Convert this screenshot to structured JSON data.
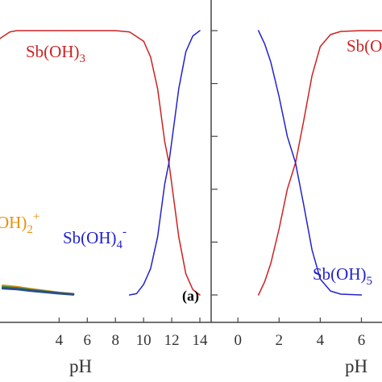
{
  "chart_data": [
    {
      "type": "line",
      "panel_label": "(a)",
      "xlabel": "pH",
      "ylabel": "",
      "xlim": [
        -0.2,
        14.8
      ],
      "ylim": [
        0,
        1
      ],
      "xticks": [
        "4",
        "6",
        "8",
        "10",
        "12",
        "14"
      ],
      "xtick_values": [
        4,
        6,
        8,
        10,
        12,
        14
      ],
      "series": [
        {
          "label_main": "Sb(OH)",
          "label_sub": "3",
          "label_sup": "",
          "color": "#cc2222",
          "x": [
            -0.2,
            0.5,
            1.0,
            2,
            4,
            6,
            8,
            9,
            10,
            10.5,
            11,
            11.5,
            11.8,
            12,
            12.5,
            13,
            13.5,
            14
          ],
          "y": [
            0.97,
            0.995,
            1.0,
            1.0,
            1.0,
            1.0,
            1.0,
            0.995,
            0.96,
            0.9,
            0.78,
            0.58,
            0.5,
            0.42,
            0.22,
            0.08,
            0.02,
            0.0
          ]
        },
        {
          "label_main": "Sb(OH)",
          "label_sub": "4",
          "label_sup": "-",
          "color": "#2222cc",
          "x": [
            9,
            9.5,
            10,
            10.5,
            11,
            11.5,
            11.8,
            12,
            12.5,
            13,
            13.5,
            14
          ],
          "y": [
            0.0,
            0.005,
            0.04,
            0.1,
            0.22,
            0.42,
            0.5,
            0.58,
            0.78,
            0.92,
            0.98,
            1.0
          ]
        },
        {
          "label_main": "OH)",
          "label_sub": "2",
          "label_sup": "+",
          "color": "#e8900a",
          "x": [
            0,
            1,
            2,
            3,
            4,
            5
          ],
          "y": [
            0.035,
            0.03,
            0.022,
            0.015,
            0.008,
            0.003
          ]
        },
        {
          "label_main": "",
          "label_sub": "",
          "label_sup": "",
          "color": "#3a8a3a",
          "x": [
            0,
            1,
            2,
            3,
            4,
            5
          ],
          "y": [
            0.03,
            0.026,
            0.019,
            0.013,
            0.007,
            0.002
          ]
        },
        {
          "label_main": "",
          "label_sub": "",
          "label_sup": "",
          "color": "#2a4f8a",
          "x": [
            0,
            1,
            2,
            3,
            4,
            5
          ],
          "y": [
            0.025,
            0.022,
            0.016,
            0.011,
            0.006,
            0.002
          ]
        }
      ]
    },
    {
      "type": "line",
      "panel_label": "",
      "xlabel": "pH",
      "ylabel": "",
      "xlim": [
        -1.3,
        7
      ],
      "ylim": [
        0,
        1
      ],
      "xticks": [
        "0",
        "2",
        "4",
        "6"
      ],
      "xtick_values": [
        0,
        2,
        4,
        6
      ],
      "series": [
        {
          "label_main": "Sb(OH)",
          "label_sub": "",
          "label_sup": "",
          "color": "#cc2222",
          "x": [
            1,
            1.3,
            1.6,
            2,
            2.4,
            2.8,
            3.2,
            3.6,
            4,
            4.5,
            5,
            6,
            7
          ],
          "y": [
            0.0,
            0.05,
            0.12,
            0.25,
            0.4,
            0.5,
            0.66,
            0.83,
            0.94,
            0.985,
            0.997,
            1.0,
            1.0
          ]
        },
        {
          "label_main": "Sb(OH)",
          "label_sub": "5",
          "label_sup": "",
          "color": "#2222cc",
          "x": [
            1,
            1.3,
            1.6,
            2,
            2.4,
            2.8,
            3.2,
            3.6,
            4,
            4.5,
            5,
            6
          ],
          "y": [
            1.0,
            0.95,
            0.88,
            0.75,
            0.6,
            0.5,
            0.34,
            0.17,
            0.06,
            0.015,
            0.003,
            0.0
          ]
        }
      ]
    }
  ]
}
